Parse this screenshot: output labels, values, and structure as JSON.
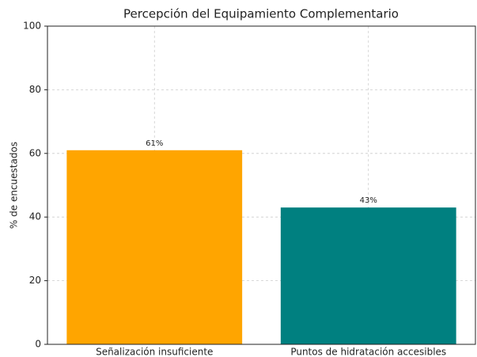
{
  "chart_data": {
    "type": "bar",
    "title": "Percepción del Equipamiento Complementario",
    "ylabel": "% de encuestados",
    "categories": [
      "Señalización insuficiente",
      "Puntos de hidratación accesibles"
    ],
    "values": [
      61,
      43
    ],
    "value_labels": [
      "61%",
      "43%"
    ],
    "colors": [
      "#ffa500",
      "#008080"
    ],
    "ylim": [
      0,
      100
    ],
    "yticks": [
      0,
      20,
      40,
      60,
      80,
      100
    ],
    "grid": true
  }
}
